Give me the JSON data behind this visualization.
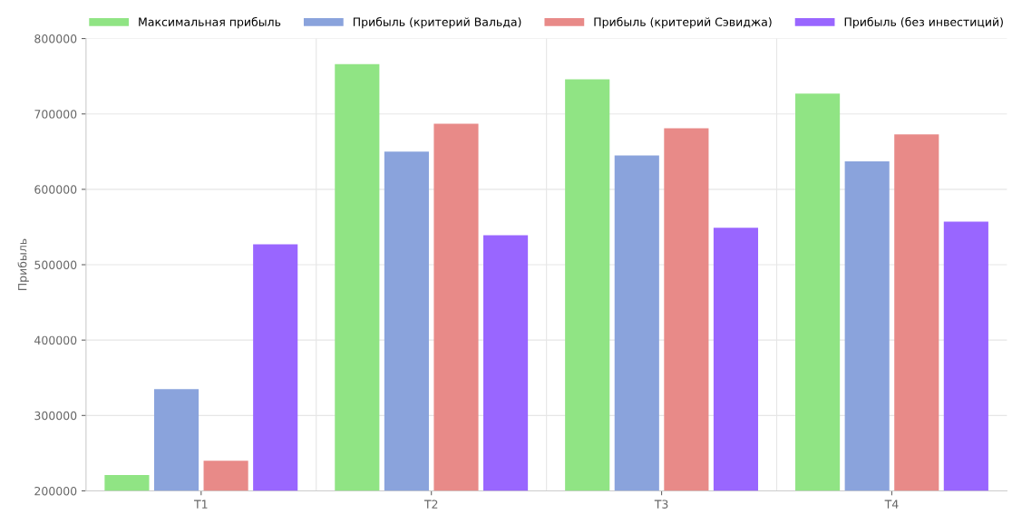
{
  "chart_data": {
    "type": "bar",
    "ylabel": "Прибыль",
    "categories": [
      "T1",
      "T2",
      "T3",
      "T4"
    ],
    "series": [
      {
        "name": "Максимальная прибыль",
        "color": "#90e484",
        "values": [
          221000,
          766000,
          746000,
          727000
        ]
      },
      {
        "name": "Прибыль (критерий Вальда)",
        "color": "#8aa3dc",
        "values": [
          335000,
          650000,
          645000,
          637000
        ]
      },
      {
        "name": "Прибыль (критерий Сэвиджа)",
        "color": "#e88a88",
        "values": [
          240000,
          687000,
          681000,
          673000
        ]
      },
      {
        "name": "Прибыль (без инвестиций)",
        "color": "#9966ff",
        "values": [
          527000,
          539000,
          549000,
          557000
        ]
      }
    ],
    "ylim": [
      200000,
      800000
    ],
    "yticks": [
      200000,
      300000,
      400000,
      500000,
      600000,
      700000,
      800000
    ],
    "grid": true,
    "legend": "top"
  }
}
